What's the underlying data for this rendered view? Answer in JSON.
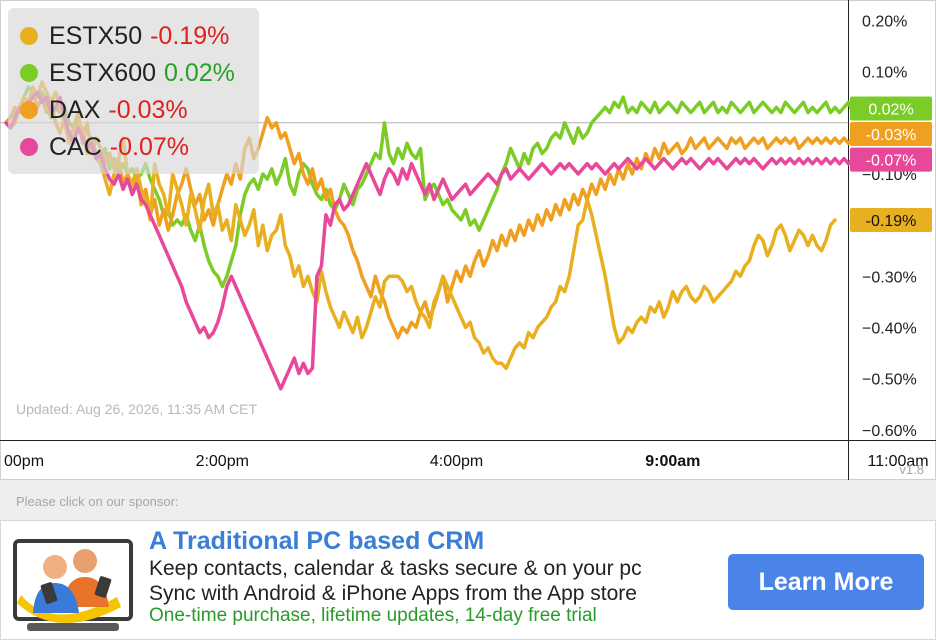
{
  "chart_data": {
    "type": "line",
    "title": "",
    "y_unit": "%",
    "ylim": [
      -0.62,
      0.24
    ],
    "y_ticks": [
      "0.20%",
      "0.10%",
      "−0.10%",
      "−0.30%",
      "−0.40%",
      "−0.50%",
      "−0.60%"
    ],
    "y_tick_values": [
      0.2,
      0.1,
      -0.1,
      -0.3,
      -0.4,
      -0.5,
      -0.6
    ],
    "x_ticks": [
      {
        "label": "00pm",
        "bold": false
      },
      {
        "label": "2:00pm",
        "bold": false
      },
      {
        "label": "4:00pm",
        "bold": false
      },
      {
        "label": "9:00am",
        "bold": true
      },
      {
        "label": "11:00am",
        "bold": false
      }
    ],
    "x_tick_index": [
      0,
      48,
      100,
      148,
      198
    ],
    "baseline_value": 0.0,
    "grid": false,
    "legend_position": "top-left",
    "series": [
      {
        "name": "ESTX50",
        "change": "-0.19%",
        "change_color": "#e0201e",
        "color": "#e8b020",
        "end_label": "-0.19%",
        "end_label_bg": "#e8b020",
        "end_label_y": -0.19,
        "values": [
          0.0,
          -0.01,
          0.0,
          0.03,
          0.05,
          0.04,
          0.07,
          0.05,
          0.08,
          0.06,
          0.04,
          0.06,
          0.03,
          0.0,
          -0.04,
          -0.02,
          0.0,
          -0.01,
          -0.06,
          -0.04,
          -0.07,
          -0.08,
          -0.11,
          -0.14,
          -0.1,
          -0.07,
          -0.03,
          -0.1,
          -0.12,
          -0.09,
          -0.13,
          -0.15,
          -0.19,
          -0.08,
          -0.12,
          -0.14,
          -0.18,
          -0.1,
          -0.13,
          -0.16,
          -0.2,
          -0.14,
          -0.17,
          -0.21,
          -0.15,
          -0.12,
          -0.18,
          -0.16,
          -0.21,
          -0.19,
          -0.23,
          -0.16,
          -0.19,
          -0.22,
          -0.2,
          -0.17,
          -0.24,
          -0.2,
          -0.25,
          -0.22,
          -0.21,
          -0.18,
          -0.24,
          -0.26,
          -0.3,
          -0.28,
          -0.32,
          -0.3,
          -0.33,
          -0.35,
          -0.29,
          -0.33,
          -0.36,
          -0.38,
          -0.4,
          -0.37,
          -0.39,
          -0.41,
          -0.38,
          -0.42,
          -0.4,
          -0.37,
          -0.34,
          -0.36,
          -0.31,
          -0.3,
          -0.3,
          -0.3,
          -0.31,
          -0.33,
          -0.32,
          -0.35,
          -0.37,
          -0.38,
          -0.4,
          -0.35,
          -0.33,
          -0.3,
          -0.32,
          -0.34,
          -0.36,
          -0.38,
          -0.4,
          -0.39,
          -0.42,
          -0.43,
          -0.45,
          -0.44,
          -0.46,
          -0.47,
          -0.47,
          -0.48,
          -0.46,
          -0.44,
          -0.43,
          -0.44,
          -0.41,
          -0.42,
          -0.4,
          -0.39,
          -0.38,
          -0.36,
          -0.35,
          -0.32,
          -0.33,
          -0.3,
          -0.25,
          -0.2,
          -0.19,
          -0.15,
          -0.18,
          -0.22,
          -0.26,
          -0.3,
          -0.35,
          -0.4,
          -0.43,
          -0.42,
          -0.4,
          -0.41,
          -0.39,
          -0.38,
          -0.39,
          -0.36,
          -0.37,
          -0.35,
          -0.38,
          -0.36,
          -0.33,
          -0.35,
          -0.33,
          -0.32,
          -0.34,
          -0.35,
          -0.34,
          -0.32,
          -0.33,
          -0.35,
          -0.34,
          -0.33,
          -0.32,
          -0.31,
          -0.29,
          -0.3,
          -0.28,
          -0.27,
          -0.24,
          -0.22,
          -0.23,
          -0.26,
          -0.24,
          -0.21,
          -0.2,
          -0.22,
          -0.25,
          -0.23,
          -0.21,
          -0.22,
          -0.24,
          -0.22,
          -0.24,
          -0.25,
          -0.23,
          -0.2,
          -0.19
        ]
      },
      {
        "name": "ESTX600",
        "change": "0.02%",
        "change_color": "#2aa02a",
        "color": "#7ccc28",
        "end_label": "0.02%",
        "end_label_bg": "#7ccc28",
        "end_label_y": 0.028,
        "values": [
          0.0,
          0.01,
          0.02,
          0.03,
          0.05,
          0.07,
          0.06,
          0.05,
          0.06,
          0.04,
          0.01,
          0.03,
          0.02,
          0.03,
          0.0,
          -0.01,
          0.0,
          -0.02,
          -0.05,
          -0.03,
          -0.06,
          -0.08,
          -0.05,
          -0.09,
          -0.07,
          -0.1,
          -0.08,
          -0.1,
          -0.09,
          -0.11,
          -0.1,
          -0.08,
          -0.11,
          -0.13,
          -0.15,
          -0.18,
          -0.17,
          -0.2,
          -0.19,
          -0.2,
          -0.18,
          -0.21,
          -0.23,
          -0.2,
          -0.24,
          -0.27,
          -0.29,
          -0.3,
          -0.32,
          -0.3,
          -0.27,
          -0.24,
          -0.18,
          -0.14,
          -0.12,
          -0.11,
          -0.13,
          -0.1,
          -0.11,
          -0.09,
          -0.12,
          -0.1,
          -0.07,
          -0.12,
          -0.14,
          -0.1,
          -0.08,
          -0.09,
          -0.12,
          -0.14,
          -0.15,
          -0.13,
          -0.16,
          -0.17,
          -0.15,
          -0.12,
          -0.14,
          -0.16,
          -0.13,
          -0.12,
          -0.1,
          -0.08,
          -0.06,
          -0.07,
          0.0,
          -0.06,
          -0.08,
          -0.05,
          -0.07,
          -0.04,
          -0.06,
          -0.07,
          -0.05,
          -0.15,
          -0.13,
          -0.12,
          -0.14,
          -0.16,
          -0.15,
          -0.17,
          -0.18,
          -0.19,
          -0.17,
          -0.2,
          -0.19,
          -0.21,
          -0.19,
          -0.17,
          -0.15,
          -0.13,
          -0.1,
          -0.08,
          -0.05,
          -0.07,
          -0.09,
          -0.06,
          -0.08,
          -0.05,
          -0.04,
          -0.06,
          -0.05,
          -0.03,
          -0.02,
          -0.03,
          0.0,
          -0.02,
          -0.04,
          -0.01,
          -0.03,
          -0.02,
          0.0,
          0.01,
          0.02,
          0.03,
          0.02,
          0.04,
          0.03,
          0.05,
          0.02,
          0.03,
          0.02,
          0.04,
          0.03,
          0.02,
          0.04,
          0.02,
          0.03,
          0.04,
          0.03,
          0.02,
          0.04,
          0.03,
          0.02,
          0.03,
          0.04,
          0.02,
          0.03,
          0.04,
          0.02,
          0.03,
          0.02,
          0.04,
          0.03,
          0.02,
          0.03,
          0.04,
          0.02,
          0.03,
          0.04,
          0.03,
          0.02,
          0.03,
          0.02,
          0.04,
          0.03,
          0.02,
          0.03,
          0.04,
          0.02,
          0.03,
          0.02,
          0.03,
          0.04,
          0.02,
          0.03,
          0.02,
          0.03,
          0.04,
          0.02,
          0.03,
          0.02,
          0.028
        ]
      },
      {
        "name": "DAX",
        "change": "-0.03%",
        "change_color": "#e0201e",
        "color": "#f0a020",
        "end_label": "-0.03%",
        "end_label_bg": "#f0a020",
        "end_label_y": -0.022,
        "values": [
          0.0,
          0.01,
          0.03,
          0.02,
          0.05,
          0.04,
          0.06,
          0.03,
          0.05,
          0.02,
          0.04,
          0.0,
          -0.02,
          0.01,
          -0.03,
          -0.01,
          0.02,
          -0.04,
          0.0,
          -0.06,
          -0.03,
          -0.05,
          -0.08,
          -0.06,
          -0.09,
          -0.07,
          -0.12,
          -0.1,
          -0.14,
          -0.11,
          -0.16,
          -0.13,
          -0.18,
          -0.15,
          -0.2,
          -0.17,
          -0.21,
          -0.18,
          -0.14,
          -0.12,
          -0.09,
          -0.13,
          -0.16,
          -0.14,
          -0.19,
          -0.17,
          -0.2,
          -0.16,
          -0.13,
          -0.1,
          -0.12,
          -0.08,
          -0.11,
          -0.05,
          -0.03,
          -0.07,
          -0.05,
          -0.02,
          0.01,
          -0.01,
          0.0,
          -0.03,
          -0.02,
          -0.05,
          -0.08,
          -0.06,
          -0.1,
          -0.12,
          -0.09,
          -0.13,
          -0.11,
          -0.15,
          -0.13,
          -0.17,
          -0.19,
          -0.2,
          -0.22,
          -0.25,
          -0.27,
          -0.3,
          -0.32,
          -0.34,
          -0.3,
          -0.33,
          -0.35,
          -0.38,
          -0.4,
          -0.42,
          -0.4,
          -0.41,
          -0.39,
          -0.4,
          -0.37,
          -0.35,
          -0.38,
          -0.36,
          -0.33,
          -0.3,
          -0.35,
          -0.32,
          -0.29,
          -0.31,
          -0.28,
          -0.3,
          -0.27,
          -0.25,
          -0.28,
          -0.26,
          -0.23,
          -0.25,
          -0.22,
          -0.24,
          -0.21,
          -0.23,
          -0.2,
          -0.22,
          -0.19,
          -0.21,
          -0.18,
          -0.2,
          -0.17,
          -0.19,
          -0.16,
          -0.18,
          -0.15,
          -0.17,
          -0.14,
          -0.16,
          -0.13,
          -0.15,
          -0.12,
          -0.14,
          -0.11,
          -0.13,
          -0.1,
          -0.12,
          -0.09,
          -0.11,
          -0.08,
          -0.1,
          -0.07,
          -0.09,
          -0.06,
          -0.08,
          -0.05,
          -0.07,
          -0.04,
          -0.06,
          -0.05,
          -0.04,
          -0.06,
          -0.05,
          -0.03,
          -0.05,
          -0.04,
          -0.03,
          -0.05,
          -0.04,
          -0.03,
          -0.04,
          -0.05,
          -0.03,
          -0.04,
          -0.03,
          -0.05,
          -0.04,
          -0.03,
          -0.04,
          -0.03,
          -0.05,
          -0.04,
          -0.03,
          -0.04,
          -0.03,
          -0.04,
          -0.03,
          -0.05,
          -0.04,
          -0.03,
          -0.04,
          -0.03,
          -0.04,
          -0.03,
          -0.04,
          -0.03,
          -0.04,
          -0.03,
          -0.04,
          -0.03,
          -0.04,
          -0.03,
          -0.03,
          -0.022
        ]
      },
      {
        "name": "CAC",
        "change": "-0.07%",
        "change_color": "#e0201e",
        "color": "#e8489a",
        "end_label": "-0.07%",
        "end_label_bg": "#e8489a",
        "end_label_y": -0.072,
        "values": [
          0.0,
          -0.01,
          0.01,
          0.03,
          0.02,
          0.04,
          0.05,
          0.06,
          0.04,
          0.05,
          0.02,
          0.03,
          0.05,
          0.01,
          -0.02,
          -0.04,
          -0.01,
          -0.03,
          -0.05,
          -0.04,
          -0.07,
          -0.06,
          -0.09,
          -0.11,
          -0.12,
          -0.1,
          -0.13,
          -0.11,
          -0.14,
          -0.12,
          -0.15,
          -0.16,
          -0.18,
          -0.2,
          -0.22,
          -0.24,
          -0.26,
          -0.28,
          -0.3,
          -0.32,
          -0.35,
          -0.37,
          -0.39,
          -0.41,
          -0.4,
          -0.42,
          -0.41,
          -0.39,
          -0.36,
          -0.32,
          -0.3,
          -0.32,
          -0.34,
          -0.36,
          -0.38,
          -0.4,
          -0.42,
          -0.44,
          -0.46,
          -0.48,
          -0.5,
          -0.52,
          -0.5,
          -0.48,
          -0.46,
          -0.49,
          -0.47,
          -0.49,
          -0.48,
          -0.3,
          -0.28,
          -0.18,
          -0.2,
          -0.16,
          -0.15,
          -0.17,
          -0.16,
          -0.14,
          -0.12,
          -0.1,
          -0.08,
          -0.1,
          -0.12,
          -0.14,
          -0.11,
          -0.09,
          -0.1,
          -0.12,
          -0.09,
          -0.11,
          -0.08,
          -0.1,
          -0.12,
          -0.14,
          -0.12,
          -0.15,
          -0.13,
          -0.11,
          -0.13,
          -0.15,
          -0.14,
          -0.13,
          -0.12,
          -0.14,
          -0.13,
          -0.12,
          -0.11,
          -0.1,
          -0.11,
          -0.12,
          -0.1,
          -0.09,
          -0.11,
          -0.1,
          -0.09,
          -0.1,
          -0.11,
          -0.1,
          -0.09,
          -0.08,
          -0.09,
          -0.1,
          -0.09,
          -0.08,
          -0.09,
          -0.08,
          -0.09,
          -0.1,
          -0.09,
          -0.08,
          -0.09,
          -0.08,
          -0.09,
          -0.1,
          -0.09,
          -0.08,
          -0.09,
          -0.08,
          -0.07,
          -0.08,
          -0.09,
          -0.08,
          -0.07,
          -0.08,
          -0.09,
          -0.08,
          -0.07,
          -0.08,
          -0.09,
          -0.08,
          -0.07,
          -0.08,
          -0.07,
          -0.08,
          -0.09,
          -0.08,
          -0.07,
          -0.08,
          -0.07,
          -0.08,
          -0.09,
          -0.08,
          -0.07,
          -0.08,
          -0.07,
          -0.08,
          -0.07,
          -0.08,
          -0.09,
          -0.08,
          -0.07,
          -0.08,
          -0.07,
          -0.08,
          -0.07,
          -0.08,
          -0.07,
          -0.08,
          -0.07,
          -0.08,
          -0.07,
          -0.08,
          -0.07,
          -0.08,
          -0.07,
          -0.08,
          -0.07,
          -0.08,
          -0.07,
          -0.072
        ]
      }
    ]
  },
  "updated_text": "Updated: Aug 26, 2026, 11:35 AM CET",
  "version": "v1.8",
  "sponsor_label": "Please click on our sponsor:",
  "ad": {
    "title": "A Traditional PC based CRM",
    "line1": "Keep contacts, calendar & tasks secure & on your pc",
    "line2": "Sync with Android & iPhone Apps from the App store",
    "line3": "One-time purchase, lifetime updates, 14-day free trial",
    "button": "Learn More"
  },
  "colors": {
    "accent": "#4a84e8",
    "ad_title": "#3b7ed6",
    "ad_green": "#2a9a2a"
  }
}
